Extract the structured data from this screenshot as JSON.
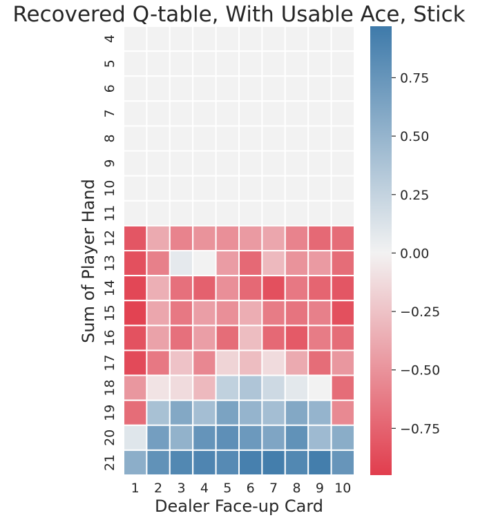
{
  "chart_data": {
    "type": "heatmap",
    "title": "Recovered Q-table, With Usable Ace, Stick",
    "xlabel": "Dealer Face-up Card",
    "ylabel": "Sum of Player Hand",
    "x_categories": [
      "1",
      "2",
      "3",
      "4",
      "5",
      "6",
      "7",
      "8",
      "9",
      "10"
    ],
    "y_categories": [
      "4",
      "5",
      "6",
      "7",
      "8",
      "9",
      "10",
      "11",
      "12",
      "13",
      "14",
      "15",
      "16",
      "17",
      "18",
      "19",
      "20",
      "21"
    ],
    "values": [
      [
        0,
        0,
        0,
        0,
        0,
        0,
        0,
        0,
        0,
        0
      ],
      [
        0,
        0,
        0,
        0,
        0,
        0,
        0,
        0,
        0,
        0
      ],
      [
        0,
        0,
        0,
        0,
        0,
        0,
        0,
        0,
        0,
        0
      ],
      [
        0,
        0,
        0,
        0,
        0,
        0,
        0,
        0,
        0,
        0
      ],
      [
        0,
        0,
        0,
        0,
        0,
        0,
        0,
        0,
        0,
        0
      ],
      [
        0,
        0,
        0,
        0,
        0,
        0,
        0,
        0,
        0,
        0
      ],
      [
        0,
        0,
        0,
        0,
        0,
        0,
        0,
        0,
        0,
        0
      ],
      [
        0,
        0,
        0,
        0,
        0,
        0,
        0,
        0,
        0,
        0
      ],
      [
        -0.82,
        -0.38,
        -0.58,
        -0.5,
        -0.52,
        -0.46,
        -0.4,
        -0.58,
        -0.72,
        -0.7
      ],
      [
        -0.85,
        -0.6,
        0.07,
        0.0,
        -0.45,
        -0.72,
        -0.3,
        -0.5,
        -0.46,
        -0.7
      ],
      [
        -0.9,
        -0.35,
        -0.68,
        -0.76,
        -0.52,
        -0.72,
        -0.85,
        -0.64,
        -0.74,
        -0.82
      ],
      [
        -0.92,
        -0.4,
        -0.64,
        -0.44,
        -0.52,
        -0.36,
        -0.62,
        -0.66,
        -0.6,
        -0.85
      ],
      [
        -0.84,
        -0.42,
        -0.68,
        -0.44,
        -0.7,
        -0.28,
        -0.72,
        -0.8,
        -0.62,
        -0.7
      ],
      [
        -0.88,
        -0.64,
        -0.25,
        -0.56,
        -0.16,
        -0.28,
        -0.12,
        -0.38,
        -0.7,
        -0.48
      ],
      [
        -0.48,
        -0.08,
        -0.12,
        -0.3,
        0.27,
        0.36,
        0.2,
        0.08,
        0.0,
        -0.7
      ],
      [
        -0.7,
        0.4,
        0.6,
        0.42,
        0.64,
        0.5,
        0.42,
        0.6,
        0.5,
        -0.55
      ],
      [
        0.1,
        0.68,
        0.52,
        0.76,
        0.8,
        0.72,
        0.62,
        0.78,
        0.45,
        0.56
      ],
      [
        0.55,
        0.78,
        0.86,
        0.88,
        0.84,
        0.92,
        0.94,
        0.86,
        0.94,
        0.75
      ]
    ],
    "colorbar": {
      "range": [
        -0.95,
        0.97
      ],
      "ticks": [
        -0.75,
        -0.5,
        -0.25,
        0.0,
        0.25,
        0.5,
        0.75
      ],
      "tick_labels": [
        "−0.75",
        "−0.50",
        "−0.25",
        "0.00",
        "0.25",
        "0.50",
        "0.75"
      ],
      "low_color": "#e13d4d",
      "mid_color": "#f2f2f2",
      "high_color": "#3e7aaa"
    },
    "grid_color": "#ffffff"
  }
}
